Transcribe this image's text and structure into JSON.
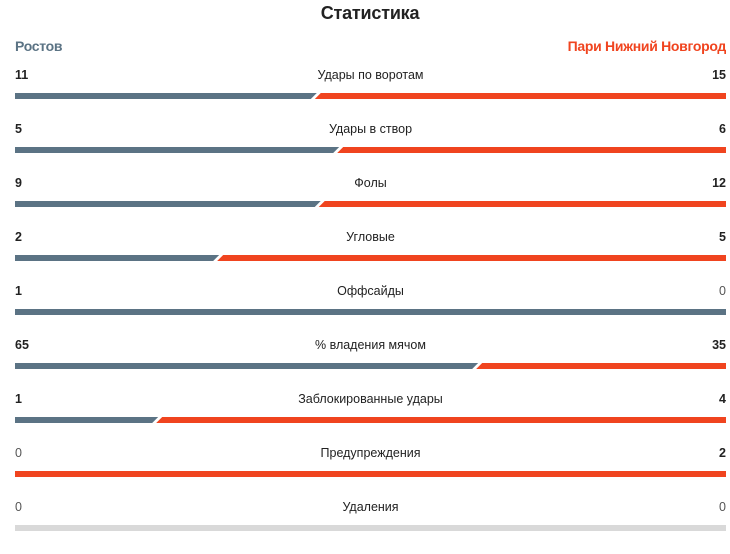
{
  "title": "Статистика",
  "teams": {
    "home": {
      "name": "Ростов",
      "color": "#5b7384"
    },
    "away": {
      "name": "Пари Нижний Новгород",
      "color": "#f0441f"
    }
  },
  "empty_color": "#d9d9d9",
  "stats": [
    {
      "label": "Удары по воротам",
      "home": 11,
      "away": 15
    },
    {
      "label": "Удары в створ",
      "home": 5,
      "away": 6
    },
    {
      "label": "Фолы",
      "home": 9,
      "away": 12
    },
    {
      "label": "Угловые",
      "home": 2,
      "away": 5
    },
    {
      "label": "Оффсайды",
      "home": 1,
      "away": 0
    },
    {
      "label": "% владения мячом",
      "home": 65,
      "away": 35
    },
    {
      "label": "Заблокированные удары",
      "home": 1,
      "away": 4
    },
    {
      "label": "Предупреждения",
      "home": 0,
      "away": 2
    },
    {
      "label": "Удаления",
      "home": 0,
      "away": 0
    }
  ]
}
